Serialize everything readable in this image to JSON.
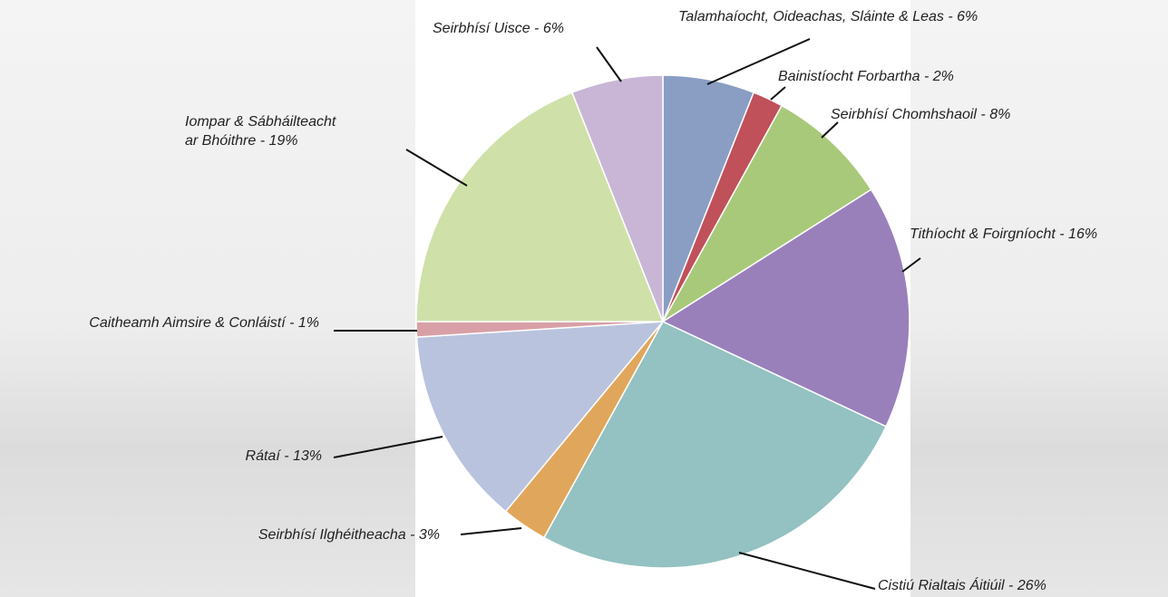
{
  "chart_data": {
    "type": "pie",
    "value_labels": [
      "Talamhaíocht, Oideachas, Sláinte & Leas - 6%",
      "Bainistíocht Forbartha - 2%",
      "Seirbhísí Chomhshaoil - 8%",
      "Tithíocht & Foirgníocht - 16%",
      "Cistiú Rialtais Áitiúil - 26%",
      "Seirbhísí Ilghéitheacha - 3%",
      "Rátaí - 13%",
      "Caitheamh Aimsire & Conláistí - 1%",
      "Iompar & Sábháilteacht\nar Bhóithre - 19%",
      "Seirbhísí Uisce - 6%"
    ],
    "values": [
      6,
      2,
      8,
      16,
      26,
      3,
      13,
      1,
      19,
      6
    ],
    "colors": [
      "#8a9ec4",
      "#c0505a",
      "#a9c97a",
      "#9a80bb",
      "#94c1c1",
      "#e0a75c",
      "#b9c3dd",
      "#d8a0a6",
      "#cfe1a9",
      "#c9b6d6"
    ]
  }
}
